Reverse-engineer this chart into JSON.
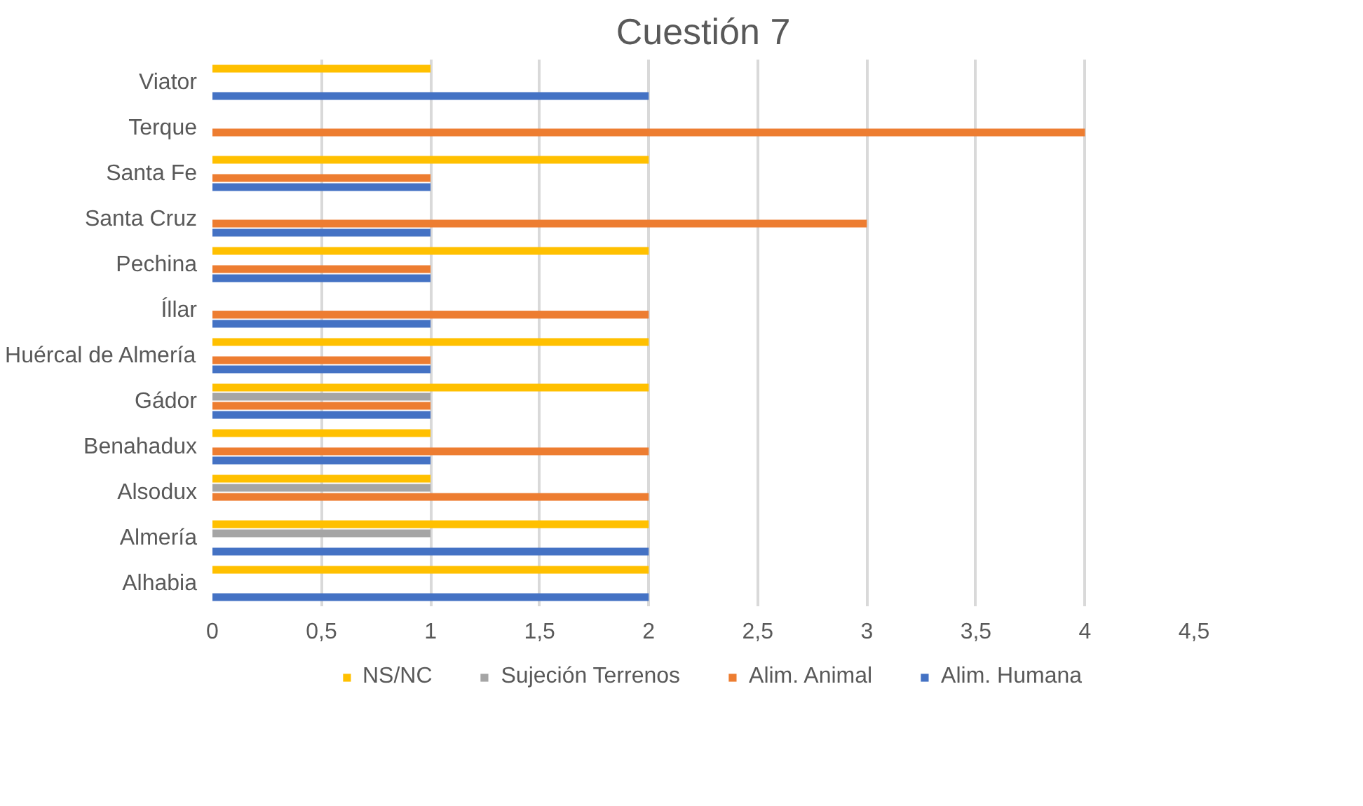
{
  "chart_data": {
    "type": "bar",
    "orientation": "horizontal",
    "title": "Cuestión 7",
    "categories": [
      "Viator",
      "Terque",
      "Santa Fe",
      "Santa Cruz",
      "Pechina",
      "Íllar",
      "Huércal de Almería",
      "Gádor",
      "Benahadux",
      "Alsodux",
      "Almería",
      "Alhabia"
    ],
    "series": [
      {
        "name": "NS/NC",
        "color": "#ffc000",
        "values": [
          1,
          null,
          2,
          null,
          2,
          null,
          2,
          2,
          1,
          1,
          2,
          2
        ]
      },
      {
        "name": "Sujeción Terrenos",
        "color": "#a5a5a5",
        "values": [
          null,
          null,
          null,
          null,
          null,
          null,
          null,
          1,
          null,
          1,
          1,
          null
        ]
      },
      {
        "name": "Alim. Animal",
        "color": "#ed7d31",
        "values": [
          null,
          4,
          1,
          3,
          1,
          2,
          1,
          1,
          2,
          2,
          null,
          null
        ]
      },
      {
        "name": "Alim. Humana",
        "color": "#4472c4",
        "values": [
          2,
          null,
          1,
          1,
          1,
          1,
          1,
          1,
          1,
          null,
          2,
          2
        ]
      }
    ],
    "xlim": [
      0,
      4.5
    ],
    "xticks": [
      0,
      {
        "value": 0.5,
        "label": "0,5"
      },
      1,
      {
        "value": 1.5,
        "label": "1,5"
      },
      2,
      {
        "value": 2.5,
        "label": "2,5"
      },
      3,
      {
        "value": 3.5,
        "label": "3,5"
      },
      4,
      {
        "value": 4.5,
        "label": "4,5"
      }
    ],
    "grid": "x",
    "legend": "bottom"
  }
}
